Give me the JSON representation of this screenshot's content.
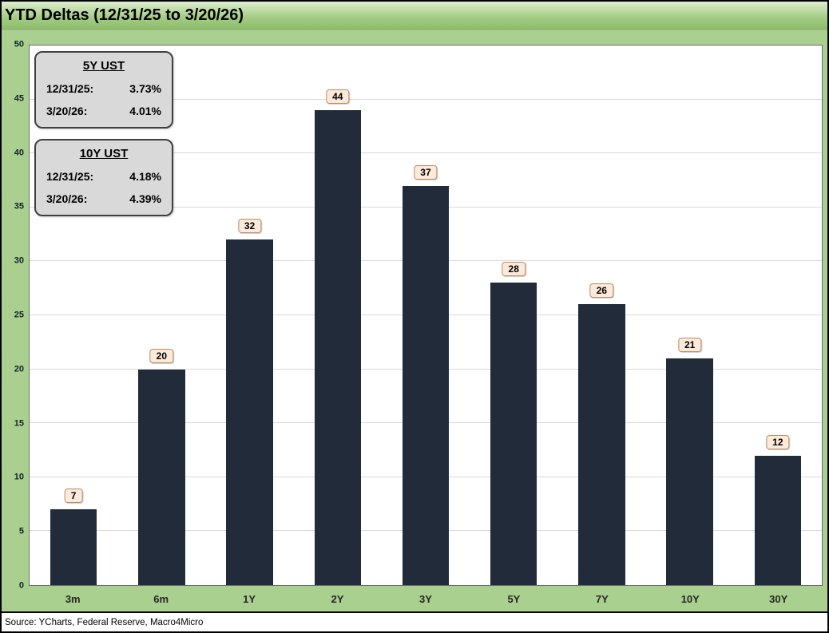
{
  "title": "YTD Deltas (12/31/25 to 3/20/26)",
  "source": "Source: YCharts, Federal Reserve, Macro4Micro",
  "chart_data": {
    "type": "bar",
    "categories": [
      "3m",
      "6m",
      "1Y",
      "2Y",
      "3Y",
      "5Y",
      "7Y",
      "10Y",
      "30Y"
    ],
    "values": [
      7,
      20,
      32,
      44,
      37,
      28,
      26,
      21,
      12
    ],
    "title": "YTD Deltas (12/31/25 to 3/20/26)",
    "xlabel": "",
    "ylabel": "",
    "ylim": [
      0,
      50
    ],
    "ytick_step": 5,
    "grid": true,
    "legend": "none",
    "bar_color": "#222B3A",
    "gridline_color": "#d9d9d9",
    "data_label_fill": "#fdeada",
    "data_label_border": "#bc8c60",
    "background_color": "#a9d08e",
    "plot_background": "#ffffff"
  },
  "annotations": [
    {
      "heading": "5Y UST",
      "rows": [
        {
          "label": "12/31/25:",
          "value": "3.73%"
        },
        {
          "label": "3/20/26:",
          "value": "4.01%"
        }
      ]
    },
    {
      "heading": "10Y UST",
      "rows": [
        {
          "label": "12/31/25:",
          "value": "4.18%"
        },
        {
          "label": "3/20/26:",
          "value": "4.39%"
        }
      ]
    }
  ]
}
